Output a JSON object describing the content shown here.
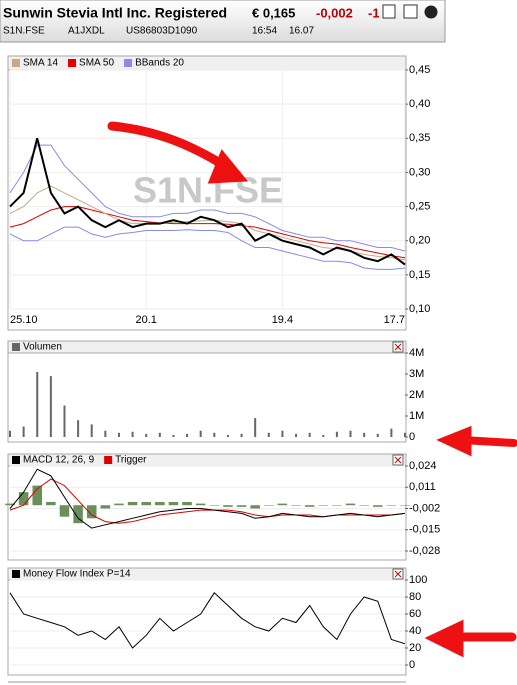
{
  "header": {
    "title": "Sunwin Stevia Intl Inc. Registered",
    "price": "€ 0,165",
    "change": "-0,002",
    "change_pct": "-1",
    "symbol": "S1N.FSE",
    "wkn": "A1JXDL",
    "isin": "US86803D1090",
    "time": "16:54",
    "date": "16.07"
  },
  "chart_data": [
    {
      "type": "line",
      "watermark": "S1N.FSE",
      "categories": [
        "25.10",
        null,
        null,
        null,
        null,
        null,
        null,
        null,
        null,
        null,
        "20.1",
        null,
        null,
        null,
        null,
        null,
        null,
        null,
        null,
        null,
        "19.4",
        null,
        null,
        null,
        null,
        null,
        null,
        null,
        null,
        "17.7"
      ],
      "ylim": [
        0.1,
        0.45
      ],
      "yticks": [
        {
          "value": 0.1,
          "label": "0,10"
        },
        {
          "value": 0.15,
          "label": "0,15"
        },
        {
          "value": 0.2,
          "label": "0,20"
        },
        {
          "value": 0.25,
          "label": "0,25"
        },
        {
          "value": 0.3,
          "label": "0,30"
        },
        {
          "value": 0.35,
          "label": "0,35"
        },
        {
          "value": 0.4,
          "label": "0,40"
        },
        {
          "value": 0.45,
          "label": "0,45"
        }
      ],
      "grid": true,
      "series": [
        {
          "color": "#000000",
          "values": [
            0.25,
            0.27,
            0.35,
            0.27,
            0.24,
            0.25,
            0.23,
            0.22,
            0.23,
            0.22,
            0.225,
            0.225,
            0.23,
            0.225,
            0.235,
            0.23,
            0.22,
            0.225,
            0.2,
            0.21,
            0.2,
            0.195,
            0.19,
            0.18,
            0.19,
            0.185,
            0.175,
            0.17,
            0.18,
            0.165
          ]
        },
        {
          "name": "SMA 14",
          "color": "#c8a888",
          "values": [
            0.24,
            0.25,
            0.27,
            0.28,
            0.27,
            0.26,
            0.25,
            0.24,
            0.23,
            0.225,
            0.225,
            0.225,
            0.227,
            0.228,
            0.229,
            0.23,
            0.228,
            0.225,
            0.215,
            0.21,
            0.205,
            0.2,
            0.195,
            0.19,
            0.188,
            0.185,
            0.18,
            0.177,
            0.175,
            0.172
          ]
        },
        {
          "name": "SMA 50",
          "color": "#dd0000",
          "values": [
            0.22,
            0.225,
            0.235,
            0.245,
            0.25,
            0.25,
            0.245,
            0.24,
            0.235,
            0.23,
            0.228,
            0.226,
            0.225,
            0.225,
            0.225,
            0.225,
            0.224,
            0.222,
            0.22,
            0.215,
            0.21,
            0.205,
            0.2,
            0.197,
            0.195,
            0.19,
            0.186,
            0.182,
            0.178,
            0.175
          ]
        },
        {
          "name": "BBands 20",
          "color": "#8888ee",
          "values": [
            0.27,
            0.3,
            0.34,
            0.34,
            0.31,
            0.29,
            0.27,
            0.25,
            0.24,
            0.235,
            0.235,
            0.235,
            0.24,
            0.24,
            0.245,
            0.245,
            0.24,
            0.24,
            0.235,
            0.225,
            0.215,
            0.21,
            0.205,
            0.205,
            0.2,
            0.2,
            0.195,
            0.19,
            0.19,
            0.185
          ]
        },
        {
          "color": "#8888ee",
          "values": [
            0.21,
            0.2,
            0.2,
            0.21,
            0.22,
            0.22,
            0.21,
            0.205,
            0.21,
            0.212,
            0.215,
            0.215,
            0.215,
            0.216,
            0.215,
            0.215,
            0.212,
            0.2,
            0.19,
            0.19,
            0.185,
            0.18,
            0.175,
            0.17,
            0.17,
            0.168,
            0.16,
            0.158,
            0.158,
            0.16
          ]
        }
      ]
    },
    {
      "type": "bar",
      "ylim": [
        0,
        4000000
      ],
      "yticks": [
        0,
        {
          "value": 1000000,
          "label": "1M"
        },
        {
          "value": 2000000,
          "label": "2M"
        },
        {
          "value": 3000000,
          "label": "3M"
        },
        {
          "value": 4000000,
          "label": "4M"
        }
      ],
      "series": [
        {
          "name": "Volumen",
          "color": "#666666",
          "values": [
            300000,
            500000,
            3100000,
            2900000,
            1500000,
            800000,
            600000,
            300000,
            200000,
            250000,
            150000,
            200000,
            100000,
            150000,
            300000,
            200000,
            100000,
            150000,
            900000,
            200000,
            300000,
            150000,
            200000,
            100000,
            250000,
            300000,
            200000,
            150000,
            400000,
            200000
          ]
        }
      ]
    },
    {
      "type": "line",
      "ylim": [
        -0.028,
        0.024
      ],
      "yticks": [
        {
          "value": -0.028,
          "label": "-0,028"
        },
        {
          "value": -0.015,
          "label": "-0,015"
        },
        {
          "value": -0.002,
          "label": "-0,002"
        },
        {
          "value": 0.011,
          "label": "0,011"
        },
        {
          "value": 0.024,
          "label": "0,024"
        }
      ],
      "grid": true,
      "series": [
        {
          "name": "MACD 12, 26, 9",
          "color": "#000000",
          "values": [
            -0.002,
            0.008,
            0.022,
            0.018,
            0.005,
            -0.008,
            -0.014,
            -0.012,
            -0.01,
            -0.008,
            -0.006,
            -0.004,
            -0.003,
            -0.002,
            -0.002,
            -0.003,
            -0.004,
            -0.005,
            -0.008,
            -0.007,
            -0.005,
            -0.006,
            -0.007,
            -0.007,
            -0.006,
            -0.005,
            -0.006,
            -0.007,
            -0.006,
            -0.005
          ]
        },
        {
          "name": "Trigger",
          "color": "#dd0000",
          "values": [
            -0.003,
            0.0,
            0.01,
            0.016,
            0.012,
            0.003,
            -0.006,
            -0.01,
            -0.011,
            -0.01,
            -0.008,
            -0.006,
            -0.005,
            -0.004,
            -0.003,
            -0.003,
            -0.003,
            -0.004,
            -0.006,
            -0.007,
            -0.006,
            -0.006,
            -0.006,
            -0.007,
            -0.006,
            -0.006,
            -0.006,
            -0.006,
            -0.006,
            -0.005
          ]
        },
        {
          "kind": "bar",
          "color": "#6a8f5a",
          "values": [
            0.001,
            0.008,
            0.012,
            0.002,
            -0.007,
            -0.011,
            -0.008,
            -0.002,
            0.001,
            0.002,
            0.002,
            0.002,
            0.002,
            0.002,
            0.001,
            0,
            -0.001,
            -0.001,
            -0.002,
            0,
            0.001,
            0,
            -0.001,
            0,
            0,
            0.001,
            0,
            -0.001,
            0,
            0
          ]
        }
      ]
    },
    {
      "type": "line",
      "ylim": [
        0,
        100
      ],
      "yticks": [
        0,
        20,
        40,
        60,
        80,
        100
      ],
      "grid": true,
      "series": [
        {
          "name": "Money Flow Index P=14",
          "color": "#000000",
          "values": [
            85,
            60,
            55,
            50,
            45,
            35,
            40,
            30,
            45,
            20,
            35,
            55,
            40,
            50,
            60,
            85,
            70,
            55,
            45,
            40,
            55,
            50,
            70,
            45,
            30,
            60,
            80,
            75,
            30,
            25
          ]
        }
      ]
    }
  ]
}
